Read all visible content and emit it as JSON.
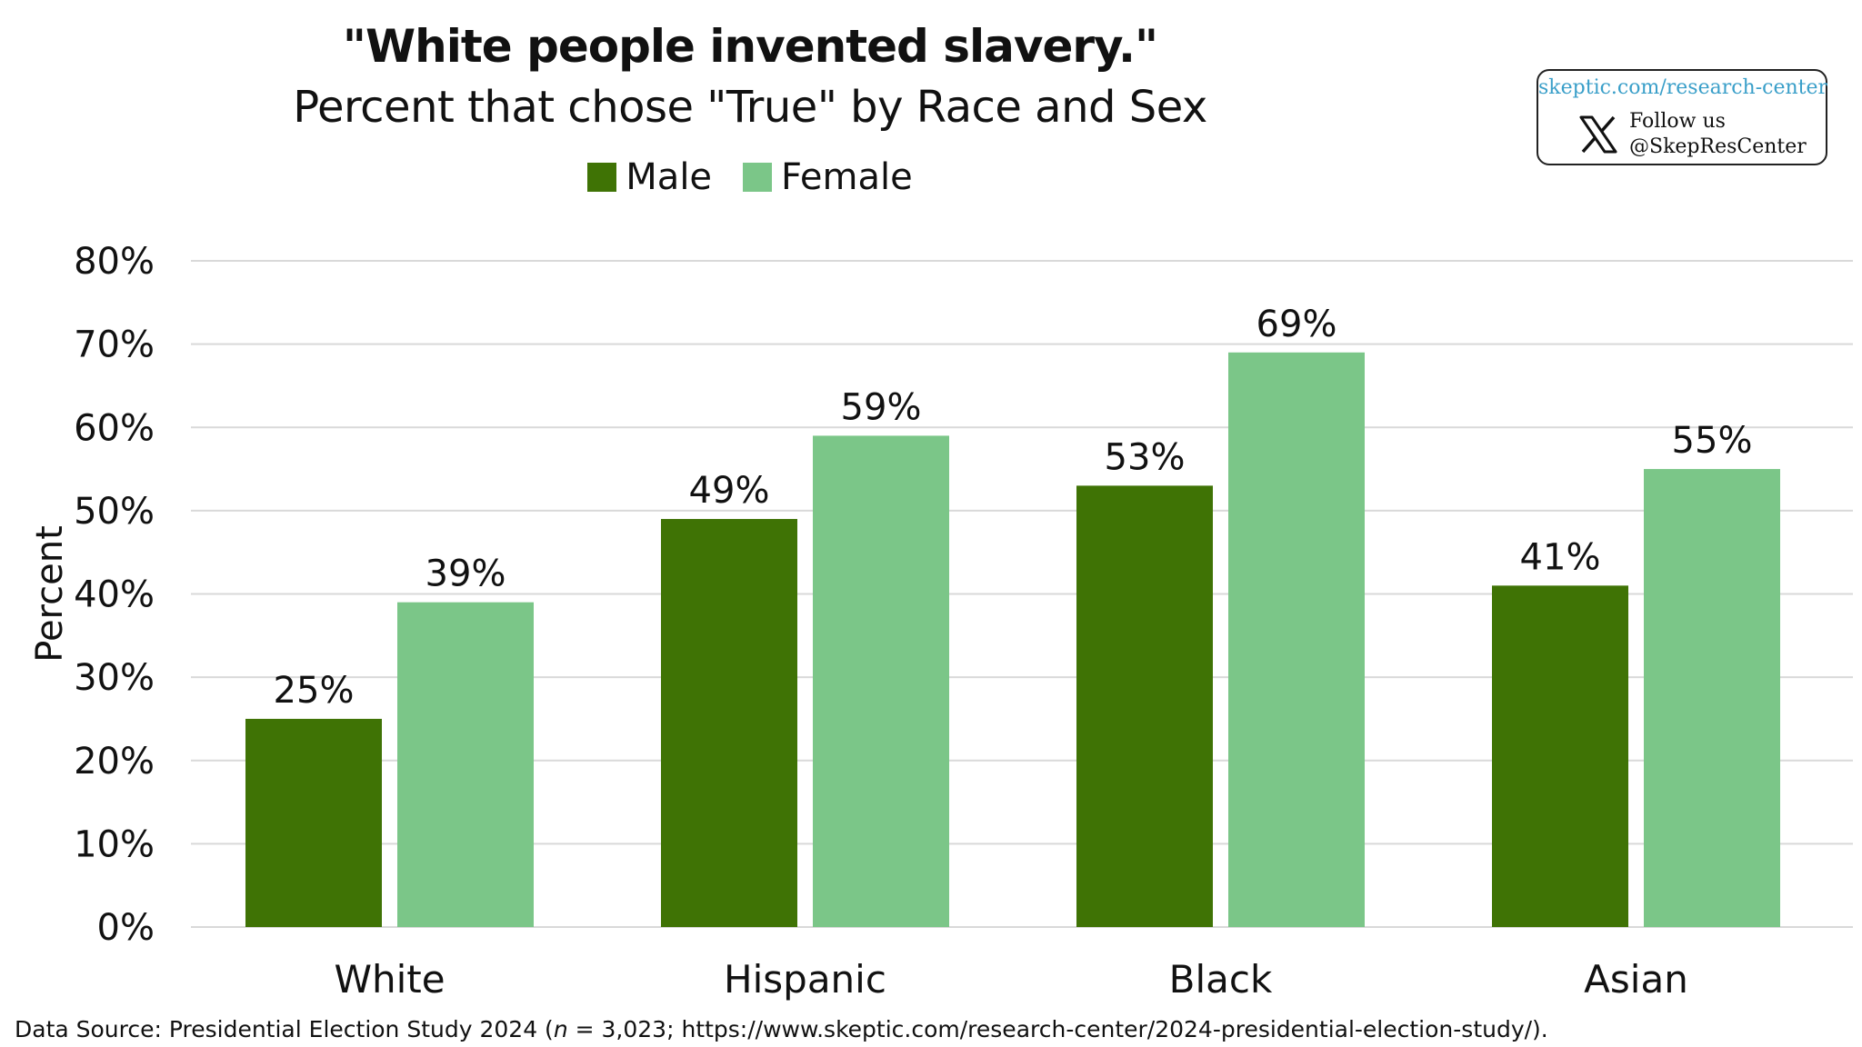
{
  "header": {
    "title": "\"White people invented slavery.\"",
    "subtitle": "Percent that chose \"True\" by Race and Sex"
  },
  "badge": {
    "url": "skeptic.com/research-center",
    "follow_line1": "Follow us",
    "follow_line2": "@SkepResCenter",
    "icon": "x-logo-icon"
  },
  "footer": {
    "source_prefix": "Data Source: Presidential Election Study 2024 (",
    "source_n_symbol": "n",
    "source_suffix": " = 3,023; https://www.skeptic.com/research-center/2024-presidential-election-study/)."
  },
  "chart_data": {
    "type": "bar",
    "title": "\"White people invented slavery.\"",
    "subtitle": "Percent that chose \"True\" by Race and Sex",
    "xlabel": "",
    "ylabel": "Percent",
    "categories": [
      "White",
      "Hispanic",
      "Black",
      "Asian"
    ],
    "series": [
      {
        "name": "Male",
        "color": "#3f7305",
        "values": [
          25,
          49,
          53,
          41
        ],
        "labels": [
          "25%",
          "49%",
          "53%",
          "41%"
        ]
      },
      {
        "name": "Female",
        "color": "#7bc688",
        "values": [
          39,
          59,
          69,
          55
        ],
        "labels": [
          "39%",
          "59%",
          "69%",
          "55%"
        ]
      }
    ],
    "ylim": [
      0,
      80
    ],
    "yticks": [
      0,
      10,
      20,
      30,
      40,
      50,
      60,
      70,
      80
    ],
    "ytick_labels": [
      "0%",
      "10%",
      "20%",
      "30%",
      "40%",
      "50%",
      "60%",
      "70%",
      "80%"
    ],
    "grid": true,
    "legend_position": "top-center"
  }
}
